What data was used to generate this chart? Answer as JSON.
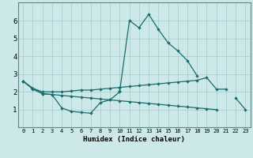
{
  "xlabel": "Humidex (Indice chaleur)",
  "bg_color": "#cce8e8",
  "grid_color": "#aad0d0",
  "line_color": "#1a6b6b",
  "xlim": [
    -0.5,
    23.5
  ],
  "ylim": [
    0,
    7
  ],
  "x": [
    0,
    1,
    2,
    3,
    4,
    5,
    6,
    7,
    8,
    9,
    10,
    11,
    12,
    13,
    14,
    15,
    16,
    17,
    18,
    19,
    20,
    21,
    22,
    23
  ],
  "line_spike": [
    null,
    null,
    null,
    null,
    null,
    null,
    null,
    null,
    null,
    null,
    2.05,
    6.0,
    5.6,
    6.35,
    5.5,
    4.75,
    4.3,
    3.75,
    2.9,
    null,
    null,
    null,
    null,
    null
  ],
  "line_upper": [
    2.6,
    2.2,
    2.0,
    2.0,
    2.0,
    2.05,
    2.1,
    2.1,
    2.15,
    2.2,
    2.25,
    2.3,
    2.35,
    2.4,
    2.45,
    2.5,
    2.55,
    2.6,
    2.65,
    2.8,
    2.15,
    2.15,
    null,
    null
  ],
  "line_upper2": [
    null,
    null,
    null,
    null,
    null,
    null,
    null,
    null,
    null,
    null,
    null,
    null,
    null,
    null,
    null,
    null,
    null,
    null,
    null,
    null,
    null,
    null,
    1.65,
    1.0
  ],
  "line_lower": [
    2.6,
    2.2,
    1.9,
    1.85,
    1.1,
    0.9,
    0.85,
    0.8,
    1.4,
    1.55,
    2.0,
    null,
    null,
    null,
    null,
    null,
    null,
    null,
    null,
    null,
    null,
    null,
    null,
    null
  ],
  "line_bottom": [
    2.6,
    2.15,
    1.9,
    1.85,
    1.8,
    1.75,
    1.7,
    1.65,
    1.6,
    1.55,
    1.5,
    1.45,
    1.4,
    1.35,
    1.3,
    1.25,
    1.2,
    1.15,
    1.1,
    1.05,
    1.0,
    null,
    null,
    null
  ]
}
